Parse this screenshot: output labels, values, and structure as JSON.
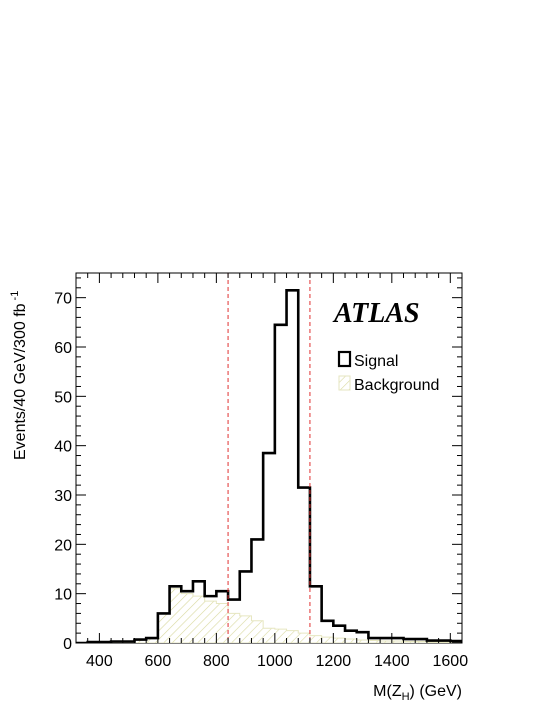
{
  "chart_data": {
    "type": "histogram",
    "brand": "ATLAS",
    "xlabel_main": "M(Z",
    "xlabel_sub": "H",
    "xlabel_tail": ") (GeV)",
    "ylabel_main": "Events/40 GeV/300 fb",
    "ylabel_sup": "-1",
    "xlim": [
      320,
      1640
    ],
    "ylim": [
      0,
      75
    ],
    "xticks": [
      400,
      600,
      800,
      1000,
      1200,
      1400,
      1600
    ],
    "yticks": [
      0,
      10,
      20,
      30,
      40,
      50,
      60,
      70
    ],
    "cut_lines": [
      840,
      1120
    ],
    "legend_position": "top-right",
    "colors": {
      "signal": "#000000",
      "background": "#d9d9a0",
      "cut": "#e03030"
    },
    "bin_width": 40,
    "bin_edges_start": 320,
    "series": [
      {
        "name": "Signal",
        "values": [
          0,
          0.2,
          0.2,
          0.3,
          0.3,
          0.7,
          1.0,
          6.0,
          11.5,
          10.5,
          12.5,
          9.5,
          10.5,
          8.8,
          14.5,
          21.0,
          38.5,
          64.5,
          71.5,
          31.5,
          11.5,
          4.5,
          3.5,
          2.5,
          2.2,
          1.0,
          1.0,
          1.0,
          0.8,
          0.8,
          0.5,
          0.5,
          0.4
        ]
      },
      {
        "name": "Background",
        "values": [
          0,
          0.2,
          0.2,
          0.3,
          0.3,
          0.7,
          1.0,
          6.0,
          11.0,
          10.0,
          9.5,
          8.5,
          8.0,
          6.0,
          5.5,
          4.5,
          3.0,
          2.8,
          2.5,
          2.0,
          1.5,
          1.2,
          1.0,
          0.8,
          0.6,
          0.5,
          0.4,
          0.4,
          0.3,
          0.3,
          0.2,
          0.2,
          0.2
        ]
      }
    ]
  }
}
